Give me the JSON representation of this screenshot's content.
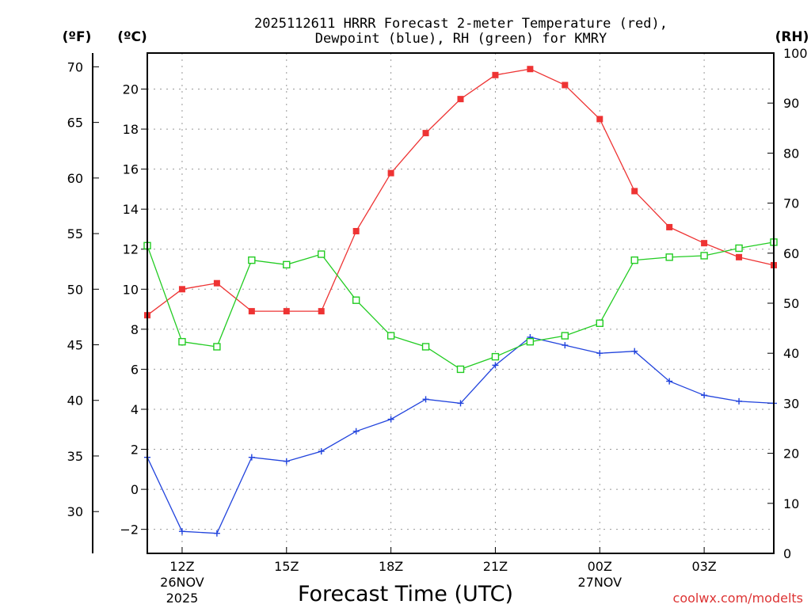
{
  "chart_data": {
    "type": "line",
    "title_line1": "2025112611 HRRR Forecast 2-meter Temperature (red),",
    "title_line2": "Dewpoint (blue), RH (green) for KMRY",
    "xlabel": "Forecast Time (UTC)",
    "credit": "coolwx.com/modelts",
    "unit_left_f": "(ºF)",
    "unit_left_c": "(ºC)",
    "unit_right_rh": "(RH)",
    "x_range": [
      11,
      29
    ],
    "x_ticks": [
      {
        "x": 12,
        "label": "12Z",
        "sub1": "26NOV",
        "sub2": "2025"
      },
      {
        "x": 15,
        "label": "15Z",
        "sub1": "",
        "sub2": ""
      },
      {
        "x": 18,
        "label": "18Z",
        "sub1": "",
        "sub2": ""
      },
      {
        "x": 21,
        "label": "21Z",
        "sub1": "",
        "sub2": ""
      },
      {
        "x": 24,
        "label": "00Z",
        "sub1": "27NOV",
        "sub2": ""
      },
      {
        "x": 27,
        "label": "03Z",
        "sub1": "",
        "sub2": ""
      }
    ],
    "y_celsius": {
      "range": [
        -3.2,
        21.8
      ],
      "ticks": [
        -2,
        0,
        2,
        4,
        6,
        8,
        10,
        12,
        14,
        16,
        18,
        20
      ]
    },
    "y_fahrenheit": {
      "range": [
        26.24,
        71.24
      ],
      "ticks": [
        30,
        35,
        40,
        45,
        50,
        55,
        60,
        65,
        70
      ]
    },
    "y_rh": {
      "range": [
        0,
        100
      ],
      "ticks": [
        0,
        10,
        20,
        30,
        40,
        50,
        60,
        70,
        80,
        90,
        100
      ]
    },
    "series": [
      {
        "name": "2-meter Temperature",
        "axis": "celsius",
        "color": "#ee3333",
        "marker": "filled-square",
        "x": [
          11,
          12,
          13,
          14,
          15,
          16,
          17,
          18,
          19,
          20,
          21,
          22,
          23,
          24,
          25,
          26,
          27,
          28,
          29
        ],
        "values": [
          8.7,
          10.0,
          10.3,
          8.9,
          8.9,
          8.9,
          12.9,
          15.8,
          17.8,
          19.5,
          20.7,
          21.0,
          20.2,
          18.5,
          14.9,
          13.1,
          12.3,
          11.6,
          11.2
        ]
      },
      {
        "name": "Dewpoint",
        "axis": "celsius",
        "color": "#2244dd",
        "marker": "plus",
        "x": [
          11,
          12,
          13,
          14,
          15,
          16,
          17,
          18,
          19,
          20,
          21,
          22,
          23,
          24,
          25,
          26,
          27,
          28,
          29
        ],
        "values": [
          1.6,
          -2.1,
          -2.2,
          1.6,
          1.4,
          1.9,
          2.9,
          3.5,
          4.5,
          4.3,
          6.2,
          7.6,
          7.2,
          6.8,
          6.9,
          5.4,
          4.7,
          4.4,
          4.3
        ]
      },
      {
        "name": "RH",
        "axis": "rh",
        "color": "#22cc22",
        "marker": "open-square",
        "x": [
          11,
          12,
          13,
          14,
          15,
          16,
          17,
          18,
          19,
          20,
          21,
          22,
          23,
          24,
          25,
          26,
          27,
          28,
          29
        ],
        "values": [
          61.5,
          42.3,
          41.3,
          58.6,
          57.7,
          59.8,
          50.6,
          43.5,
          41.3,
          36.8,
          39.3,
          42.3,
          43.5,
          46.0,
          58.6,
          59.2,
          59.5,
          61.0,
          62.2
        ]
      }
    ]
  }
}
